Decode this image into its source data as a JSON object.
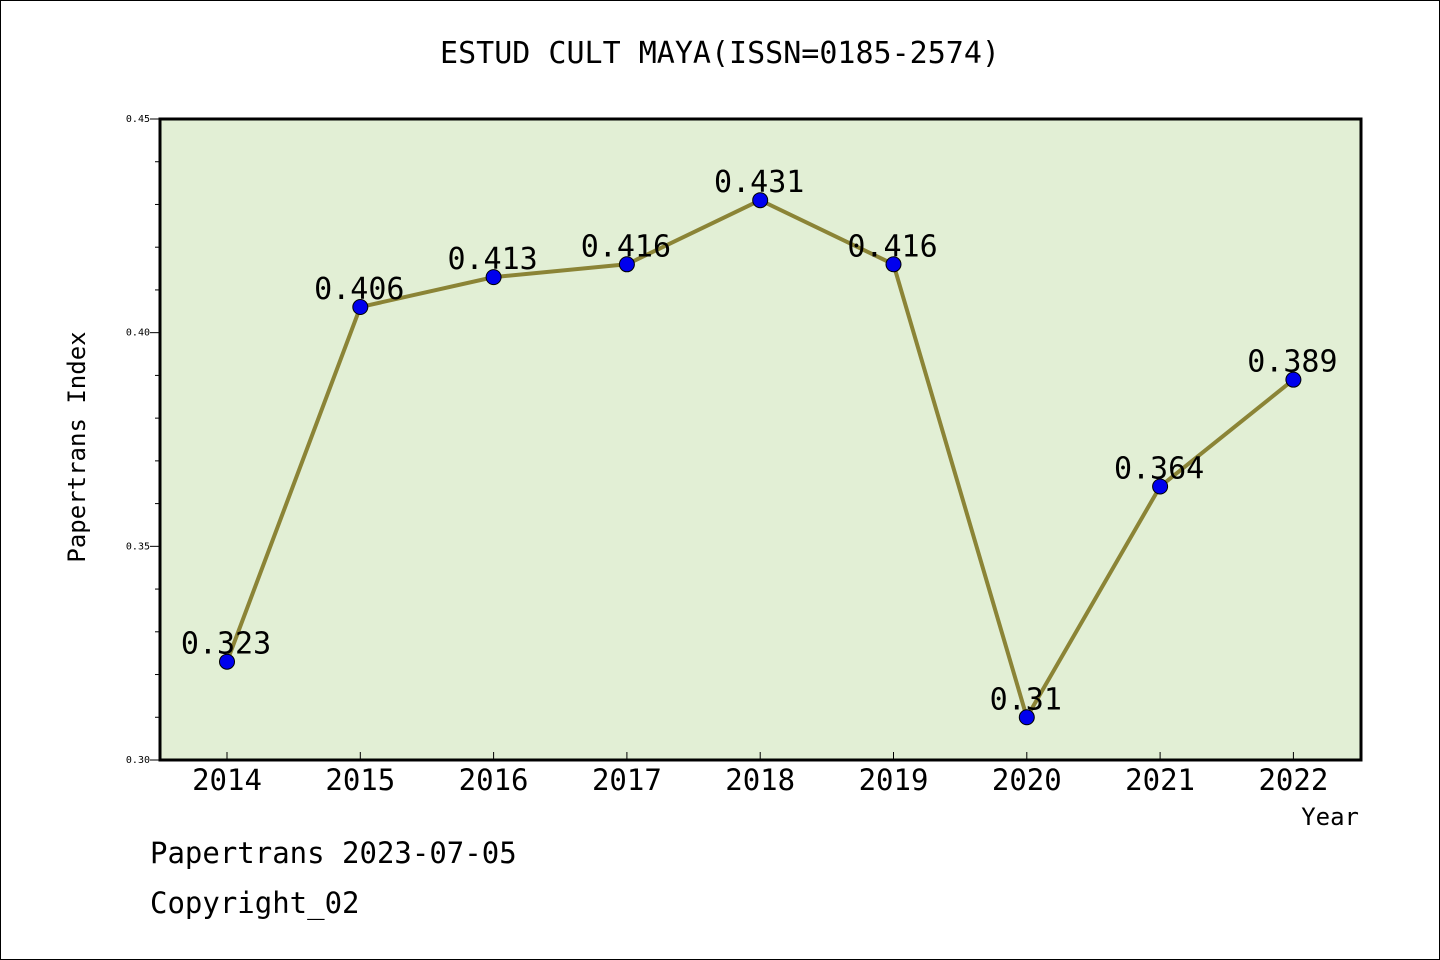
{
  "title": "ESTUD CULT MAYA(ISSN=0185-2574)",
  "footer": {
    "line1": "Papertrans 2023-07-05",
    "line2": "Copyright_02"
  },
  "chart_data": {
    "type": "line",
    "title": "ESTUD CULT MAYA(ISSN=0185-2574)",
    "xlabel": "Year",
    "ylabel": "Papertrans Index",
    "categories": [
      "2014",
      "2015",
      "2016",
      "2017",
      "2018",
      "2019",
      "2020",
      "2021",
      "2022"
    ],
    "series": [
      {
        "values": [
          0.323,
          0.406,
          0.413,
          0.416,
          0.431,
          0.416,
          0.31,
          0.364,
          0.389
        ],
        "labels": [
          "0.323",
          "0.406",
          "0.413",
          "0.416",
          "0.431",
          "0.416",
          "0.31",
          "0.364",
          "0.389"
        ]
      }
    ],
    "ylim": [
      0.3,
      0.45
    ],
    "yticks": [
      "0.30",
      "0.35",
      "0.40",
      "0.45"
    ],
    "grid": false,
    "colors": {
      "plot_bg": "#e2efd5",
      "line": "#8b8436",
      "marker": "#0000ee"
    }
  }
}
